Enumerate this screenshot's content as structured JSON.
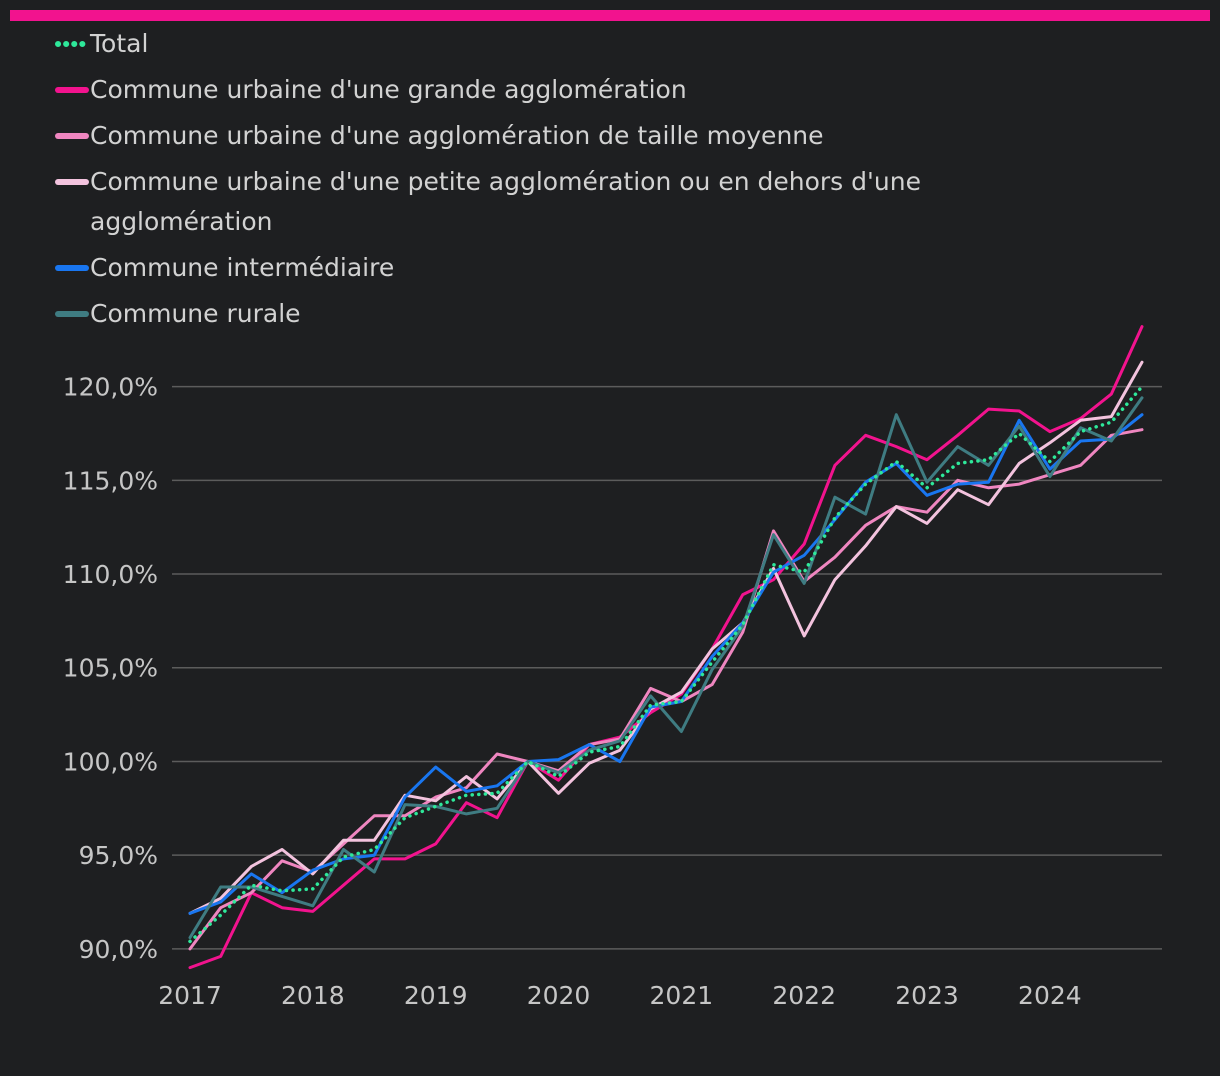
{
  "colors": {
    "background": "#1e1f21",
    "accent_bar": "#f2138e",
    "grid": "#5c5c5c",
    "text": "#d2d2d2"
  },
  "chart_data": {
    "type": "line",
    "title": "",
    "xlabel": "",
    "ylabel": "",
    "ylim": [
      88.5,
      123.5
    ],
    "xlim": [
      2017,
      2024.75
    ],
    "y_ticks": [
      {
        "value": 90,
        "label": "90,0%"
      },
      {
        "value": 95,
        "label": "95,0%"
      },
      {
        "value": 100,
        "label": "100,0%"
      },
      {
        "value": 105,
        "label": "105,0%"
      },
      {
        "value": 110,
        "label": "110,0%"
      },
      {
        "value": 115,
        "label": "115,0%"
      },
      {
        "value": 120,
        "label": "120,0%"
      }
    ],
    "x_ticks": [
      {
        "value": 2017,
        "label": "2017"
      },
      {
        "value": 2018,
        "label": "2018"
      },
      {
        "value": 2019,
        "label": "2019"
      },
      {
        "value": 2020,
        "label": "2020"
      },
      {
        "value": 2021,
        "label": "2021"
      },
      {
        "value": 2022,
        "label": "2022"
      },
      {
        "value": 2023,
        "label": "2023"
      },
      {
        "value": 2024,
        "label": "2024"
      }
    ],
    "x": [
      2017,
      2017.25,
      2017.5,
      2017.75,
      2018,
      2018.25,
      2018.5,
      2018.75,
      2019,
      2019.25,
      2019.5,
      2019.75,
      2020,
      2020.25,
      2020.5,
      2020.75,
      2021,
      2021.25,
      2021.5,
      2021.75,
      2022,
      2022.25,
      2022.5,
      2022.75,
      2023,
      2023.25,
      2023.5,
      2023.75,
      2024,
      2024.25,
      2024.5,
      2024.75
    ],
    "series": [
      {
        "name": "Total",
        "color": "#2ee89a",
        "dotted": true,
        "values": [
          90.4,
          91.8,
          93.4,
          93.1,
          93.2,
          94.9,
          95.3,
          97.0,
          97.6,
          98.2,
          98.3,
          100.0,
          99.2,
          100.5,
          100.8,
          103.0,
          103.2,
          105.3,
          107.3,
          110.5,
          110.1,
          113.0,
          114.8,
          116.0,
          114.6,
          115.9,
          116.1,
          117.5,
          116.0,
          117.6,
          118.1,
          120.0
        ]
      },
      {
        "name": "Commune urbaine d'une grande agglomération",
        "color": "#f2138e",
        "dotted": false,
        "values": [
          89.0,
          89.6,
          93.0,
          92.2,
          92.0,
          93.4,
          94.8,
          94.8,
          95.6,
          97.8,
          97.0,
          100.0,
          99.0,
          100.9,
          101.3,
          102.6,
          103.6,
          106.0,
          108.9,
          109.7,
          111.6,
          115.8,
          117.4,
          116.8,
          116.1,
          117.4,
          118.8,
          118.7,
          117.6,
          118.3,
          119.6,
          123.2
        ]
      },
      {
        "name": "Commune urbaine d'une agglomération de taille moyenne",
        "color": "#ef86c0",
        "dotted": false,
        "values": [
          90.0,
          92.2,
          93.0,
          94.7,
          94.1,
          95.6,
          97.1,
          97.1,
          98.1,
          98.6,
          100.4,
          100.0,
          99.5,
          100.9,
          101.2,
          103.9,
          103.2,
          104.1,
          106.9,
          112.3,
          109.6,
          110.9,
          112.6,
          113.6,
          113.3,
          115.0,
          114.6,
          114.8,
          115.3,
          115.8,
          117.4,
          117.7
        ]
      },
      {
        "name": "Commune urbaine d'une petite agglomération ou en dehors d'une agglomération",
        "color": "#f3c3de",
        "dotted": false,
        "values": [
          91.9,
          92.7,
          94.4,
          95.3,
          94.0,
          95.8,
          95.8,
          98.2,
          97.9,
          99.2,
          98.0,
          100.0,
          98.3,
          99.9,
          100.6,
          102.8,
          103.7,
          106.0,
          107.4,
          110.3,
          106.7,
          109.7,
          111.5,
          113.6,
          112.7,
          114.5,
          113.7,
          115.9,
          117.0,
          118.2,
          118.4,
          121.3
        ]
      },
      {
        "name": "Commune intermédiaire",
        "color": "#1976f0",
        "dotted": false,
        "values": [
          91.9,
          92.5,
          94.0,
          93.0,
          94.2,
          94.8,
          95.0,
          98.1,
          99.7,
          98.4,
          98.7,
          100.0,
          100.1,
          100.9,
          100.0,
          102.9,
          103.2,
          105.6,
          107.4,
          110.1,
          111.0,
          112.9,
          114.9,
          115.9,
          114.2,
          114.8,
          114.9,
          118.2,
          115.6,
          117.1,
          117.2,
          118.5
        ]
      },
      {
        "name": "Commune rurale",
        "color": "#3f7c82",
        "dotted": false,
        "values": [
          90.6,
          93.3,
          93.3,
          92.8,
          92.3,
          95.3,
          94.1,
          97.7,
          97.6,
          97.2,
          97.5,
          100.0,
          99.4,
          100.6,
          101.1,
          103.5,
          101.6,
          104.9,
          107.2,
          112.1,
          109.5,
          114.1,
          113.2,
          118.5,
          114.9,
          116.8,
          115.8,
          117.9,
          115.2,
          117.8,
          117.1,
          119.4
        ]
      }
    ]
  }
}
